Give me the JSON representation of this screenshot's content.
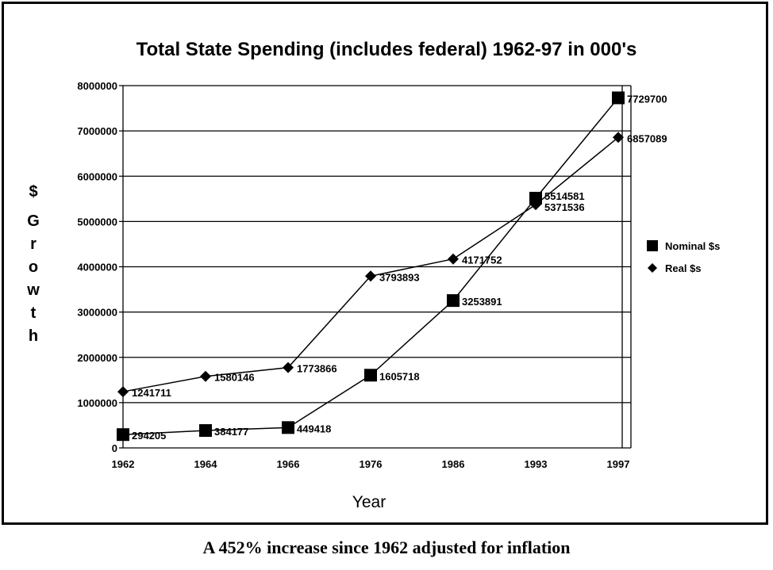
{
  "chart_data": {
    "type": "line",
    "title": "Total State Spending (includes federal) 1962-97 in 000's",
    "xlabel": "Year",
    "ylabel": "$ Growth",
    "ylabel_chars": [
      "$",
      "G",
      "r",
      "o",
      "w",
      "t",
      "h"
    ],
    "categories": [
      "1962",
      "1964",
      "1966",
      "1976",
      "1986",
      "1993",
      "1997"
    ],
    "ylim": [
      0,
      8000000
    ],
    "yticks": [
      "0",
      "1000000",
      "2000000",
      "3000000",
      "4000000",
      "5000000",
      "6000000",
      "7000000",
      "8000000"
    ],
    "grid": true,
    "legend_position": "right",
    "series": [
      {
        "name": "Nominal $s",
        "marker": "square",
        "values": [
          294205,
          384177,
          449418,
          1605718,
          3253891,
          5514581,
          7729700
        ]
      },
      {
        "name": "Real $s",
        "marker": "diamond",
        "values": [
          1241711,
          1580146,
          1773866,
          3793893,
          4171752,
          5371536,
          6857089
        ]
      }
    ]
  },
  "caption": "A 452% increase since 1962 adjusted for inflation"
}
